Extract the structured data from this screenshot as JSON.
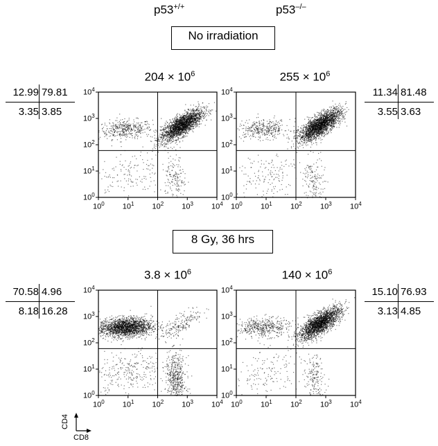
{
  "column_labels": [
    {
      "base": "p53",
      "sup": "+/+"
    },
    {
      "base": "p53",
      "sup": "–/–"
    }
  ],
  "conditions": [
    "No irradiation",
    "8 Gy, 36 hrs"
  ],
  "chart_data": [
    {
      "type": "scatter",
      "name": "",
      "genotype": "p53+/+",
      "condition": "No irradiation",
      "count": {
        "mantissa": "204",
        "exponent": "6"
      },
      "quadrants": {
        "ul": "12.99",
        "ur": "79.81",
        "ll": "3.35",
        "lr": "3.85"
      },
      "xlabel": "CD8",
      "ylabel": "CD4",
      "xscale": "log",
      "yscale": "log",
      "xlim": [
        1,
        10000
      ],
      "ylim": [
        1,
        10000
      ],
      "gate_x": 100,
      "gate_y": 60
    },
    {
      "type": "scatter",
      "name": "",
      "genotype": "p53-/-",
      "condition": "No irradiation",
      "count": {
        "mantissa": "255",
        "exponent": "6"
      },
      "quadrants": {
        "ul": "11.34",
        "ur": "81.48",
        "ll": "3.55",
        "lr": "3.63"
      },
      "xlabel": "CD8",
      "ylabel": "CD4",
      "xscale": "log",
      "yscale": "log",
      "xlim": [
        1,
        10000
      ],
      "ylim": [
        1,
        10000
      ],
      "gate_x": 100,
      "gate_y": 60
    },
    {
      "type": "scatter",
      "name": "",
      "genotype": "p53+/+",
      "condition": "8 Gy, 36 hrs",
      "count": {
        "mantissa": "3.8",
        "exponent": "6"
      },
      "quadrants": {
        "ul": "70.58",
        "ur": "4.96",
        "ll": "8.18",
        "lr": "16.28"
      },
      "xlabel": "CD8",
      "ylabel": "CD4",
      "xscale": "log",
      "yscale": "log",
      "xlim": [
        1,
        10000
      ],
      "ylim": [
        1,
        10000
      ],
      "gate_x": 100,
      "gate_y": 60
    },
    {
      "type": "scatter",
      "name": "",
      "genotype": "p53-/-",
      "condition": "8 Gy, 36 hrs",
      "count": {
        "mantissa": "140",
        "exponent": "6"
      },
      "quadrants": {
        "ul": "15.10",
        "ur": "76.93",
        "ll": "3.13",
        "lr": "4.85"
      },
      "xlabel": "CD8",
      "ylabel": "CD4",
      "xscale": "log",
      "yscale": "log",
      "xlim": [
        1,
        10000
      ],
      "ylim": [
        1,
        10000
      ],
      "gate_x": 100,
      "gate_y": 60
    }
  ],
  "tick_labels": [
    {
      "base": "10",
      "sup": "0"
    },
    {
      "base": "10",
      "sup": "1"
    },
    {
      "base": "10",
      "sup": "2"
    },
    {
      "base": "10",
      "sup": "3"
    },
    {
      "base": "10",
      "sup": "4"
    }
  ],
  "axis_key": {
    "y": "CD4",
    "x": "CD8"
  },
  "colors": {
    "dots": "#000000",
    "frame": "#000000",
    "background": "#ffffff"
  }
}
